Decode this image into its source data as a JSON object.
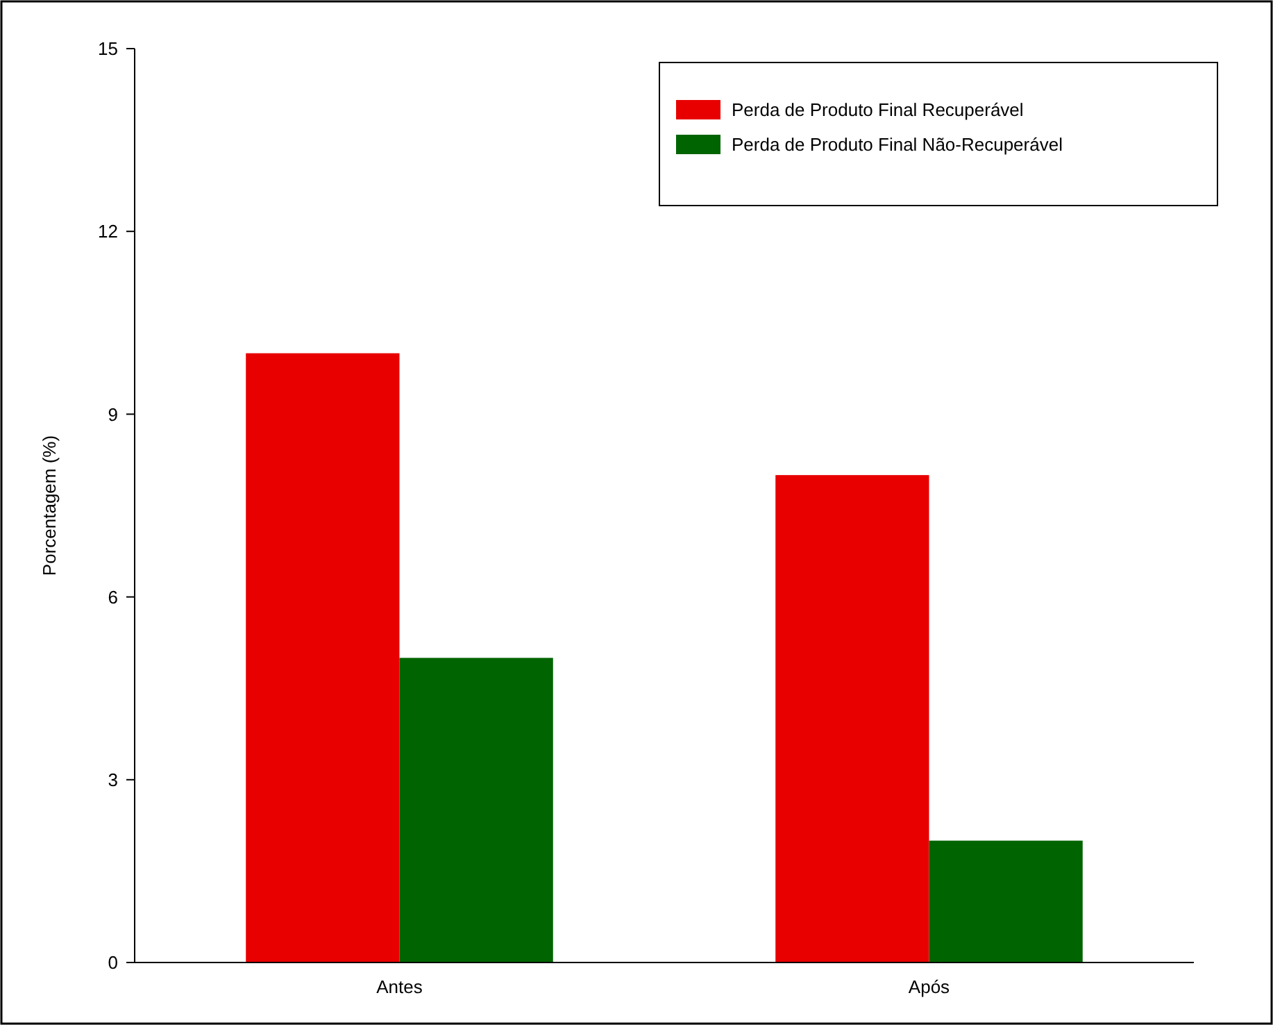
{
  "chart_data": {
    "type": "bar",
    "ylabel": "Porcentagem  (%)",
    "categories": [
      "Antes",
      "Após"
    ],
    "series": [
      {
        "name": "Perda de Produto Final Recuperável",
        "color": "#e80000",
        "values": [
          10,
          8
        ]
      },
      {
        "name": "Perda de Produto Final Não-Recuperável",
        "color": "#006400",
        "values": [
          5,
          2
        ]
      }
    ],
    "ylim": [
      0,
      15
    ],
    "yticks": [
      0,
      3,
      6,
      9,
      12,
      15
    ],
    "grid": false,
    "legend": "top right"
  }
}
